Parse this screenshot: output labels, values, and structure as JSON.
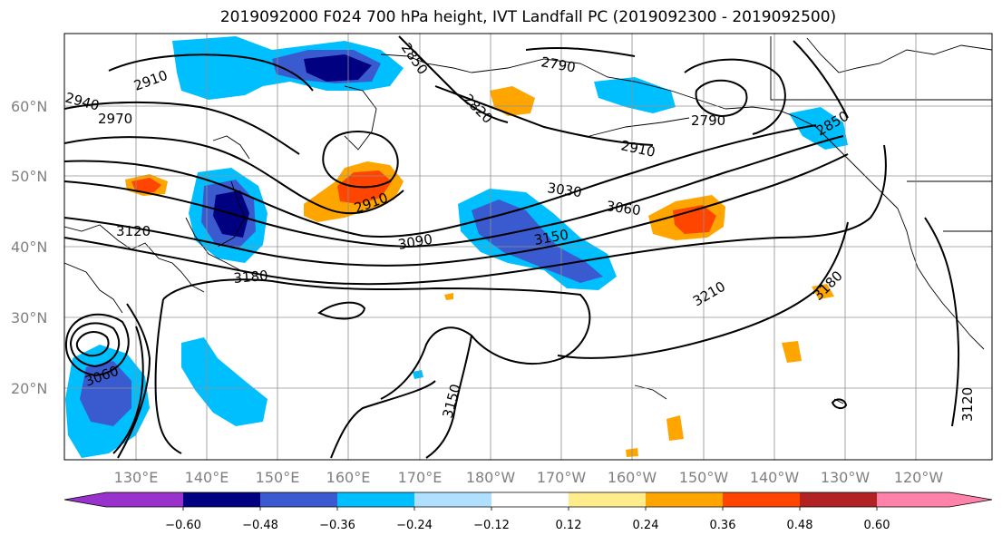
{
  "title": "2019092000 F024 700 hPa height, IVT Landfall PC (2019092300 - 2019092500)",
  "latitude_labels": [
    "60°N",
    "50°N",
    "40°N",
    "30°N",
    "20°N"
  ],
  "longitude_labels": [
    "130°E",
    "140°E",
    "150°E",
    "160°E",
    "170°E",
    "180°W",
    "170°W",
    "160°W",
    "150°W",
    "140°W",
    "130°W",
    "120°W"
  ],
  "contour_labels": [
    "2910",
    "2970",
    "2940",
    "2850",
    "2790",
    "2820",
    "2790",
    "2910",
    "3030",
    "3060",
    "2910",
    "3090",
    "3150",
    "3120",
    "3180",
    "3210",
    "3180",
    "3150",
    "3060",
    "3120",
    "2850"
  ],
  "colorbar": {
    "ticks": [
      "−0.60",
      "−0.48",
      "−0.36",
      "−0.24",
      "−0.12",
      "0.12",
      "0.24",
      "0.36",
      "0.48",
      "0.60"
    ],
    "colors": [
      "#9932cc",
      "#000080",
      "#3a5bcf",
      "#00bfff",
      "#b0e0ff",
      "#ffffff",
      "#ffec8b",
      "#ffa500",
      "#ff4500",
      "#b22222",
      "#ff82ab"
    ]
  }
}
